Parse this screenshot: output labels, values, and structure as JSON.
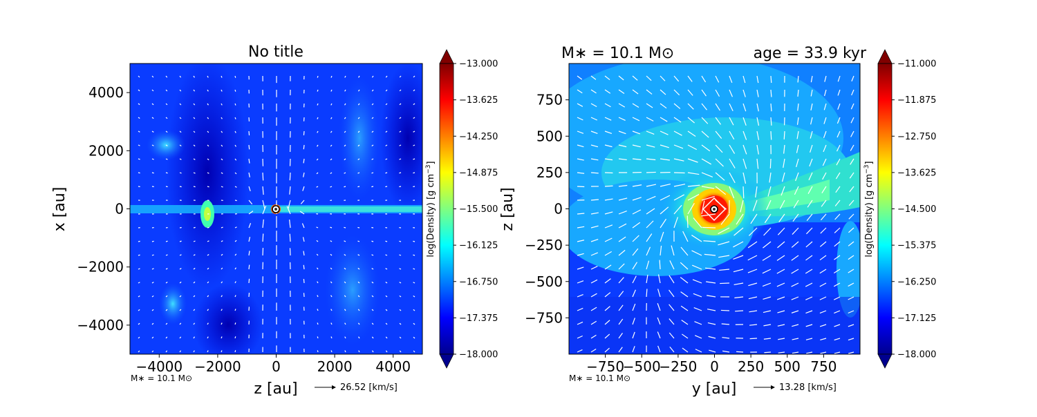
{
  "chart_data": [
    {
      "type": "heatmap",
      "title": "No title",
      "xlabel": "z [au]",
      "ylabel": "x [au]",
      "xlim": [
        -5000,
        5000
      ],
      "ylim": [
        -5000,
        5000
      ],
      "x_ticks": [
        -4000,
        -2000,
        0,
        2000,
        4000
      ],
      "y_ticks": [
        -4000,
        -2000,
        0,
        2000,
        4000
      ],
      "x_tick_labels": [
        "−4000",
        "−2000",
        "0",
        "2000",
        "4000"
      ],
      "y_tick_labels": [
        "−4000",
        "−2000",
        "0",
        "2000",
        "4000"
      ],
      "colorbar": {
        "label": "log(Density) [g cm",
        "label_sup": "−3",
        "label_end": "]",
        "range": [
          -18.0,
          -13.0
        ],
        "ticks": [
          -13.0,
          -13.625,
          -14.25,
          -14.875,
          -15.5,
          -16.125,
          -16.75,
          -17.375,
          -18.0
        ],
        "tick_labels": [
          "−13.000",
          "−13.625",
          "−14.250",
          "−14.875",
          "−15.500",
          "−16.125",
          "−16.750",
          "−17.375",
          "−18.000"
        ]
      },
      "star_position": [
        0,
        0
      ],
      "footnote": "M∗ = 10.1 M⊙",
      "reference_arrow": "26.52 [km/s]"
    },
    {
      "type": "heatmap",
      "title_left": "M∗ = 10.1 M⊙",
      "title_right": "age = 33.9 kyr",
      "xlabel": "y [au]",
      "ylabel": "z [au]",
      "xlim": [
        -1000,
        1000
      ],
      "ylim": [
        -1000,
        1000
      ],
      "x_ticks": [
        -750,
        -500,
        -250,
        0,
        250,
        500,
        750
      ],
      "y_ticks": [
        -750,
        -500,
        -250,
        0,
        250,
        500,
        750
      ],
      "x_tick_labels": [
        "−750",
        "−500",
        "−250",
        "0",
        "250",
        "500",
        "750"
      ],
      "y_tick_labels": [
        "−750",
        "−500",
        "−250",
        "0",
        "250",
        "500",
        "750"
      ],
      "colorbar": {
        "label": "log(Density) [g cm",
        "label_sup": "−3",
        "label_end": "]",
        "range": [
          -18.0,
          -11.0
        ],
        "ticks": [
          -11.0,
          -11.875,
          -12.75,
          -13.625,
          -14.5,
          -15.375,
          -16.25,
          -17.125,
          -18.0
        ],
        "tick_labels": [
          "−11.000",
          "−11.875",
          "−12.750",
          "−13.625",
          "−14.500",
          "−15.375",
          "−16.250",
          "−17.125",
          "−18.000"
        ]
      },
      "star_position": [
        0,
        0
      ],
      "footnote": "M∗ = 10.1 M⊙",
      "reference_arrow": "13.28 [km/s]"
    }
  ],
  "colors": {
    "background_field": "#0a3cff",
    "filament": "#19b4ff",
    "envelope": "#2ad6e8",
    "disk_core": "#e81a0a",
    "vectors": "#ffffff"
  }
}
